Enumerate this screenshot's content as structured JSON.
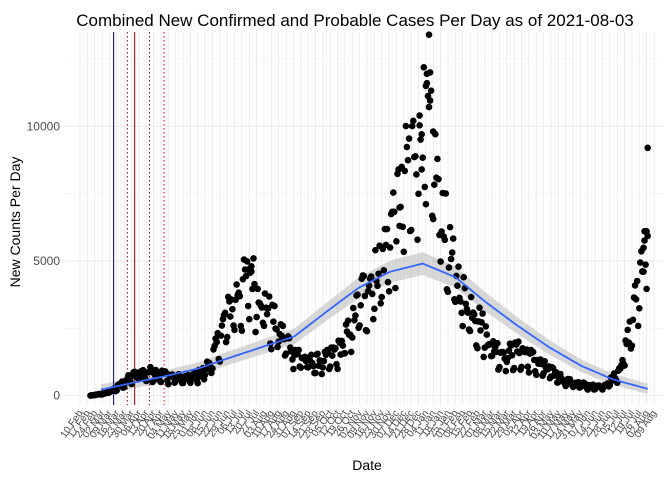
{
  "chart_data": {
    "type": "scatter",
    "title": "Combined New Confirmed and Probable Cases Per Day as of 2021-08-03",
    "xlabel": "Date",
    "ylabel": "New Counts Per Day",
    "x_start": "2020-02-10",
    "x_end": "2021-08-09",
    "ylim": [
      -350,
      13500
    ],
    "yticks": [
      0,
      5000,
      10000
    ],
    "ytick_labels": [
      "0",
      "5000",
      "10000"
    ],
    "xtick_labels": [
      "10 Feb",
      "17 Feb",
      "24 Feb",
      "02 Mar",
      "09 Mar",
      "16 Mar",
      "23 Mar",
      "30 Mar",
      "06 Apr",
      "13 Apr",
      "20 Apr",
      "27 Apr",
      "04 May",
      "11 May",
      "18 May",
      "25 May",
      "01 Jun",
      "08 Jun",
      "15 Jun",
      "22 Jun",
      "29 Jun",
      "06 Jul",
      "13 Jul",
      "20 Jul",
      "27 Jul",
      "03 Aug",
      "10 Aug",
      "17 Aug",
      "24 Aug",
      "31 Aug",
      "07 Sep",
      "14 Sep",
      "21 Sep",
      "28 Sep",
      "05 Oct",
      "12 Oct",
      "19 Oct",
      "26 Oct",
      "02 Nov",
      "09 Nov",
      "16 Nov",
      "23 Nov",
      "30 Nov",
      "07 Dec",
      "14 Dec",
      "21 Dec",
      "28 Dec",
      "04 Jan",
      "11 Jan",
      "18 Jan",
      "25 Jan",
      "01 Feb",
      "08 Feb",
      "15 Feb",
      "22 Feb",
      "01 Mar",
      "08 Mar",
      "15 Mar",
      "22 Mar",
      "29 Mar",
      "05 Apr",
      "12 Apr",
      "19 Apr",
      "26 Apr",
      "03 May",
      "10 May",
      "17 May",
      "24 May",
      "31 May",
      "07 Jun",
      "14 Jun",
      "21 Jun",
      "28 Jun",
      "05 Jul",
      "12 Jul",
      "19 Jul",
      "26 Jul",
      "02 Aug",
      "09 Aug"
    ],
    "grid": true,
    "point_color": "#000000",
    "smooth_color": "#3366ff",
    "ribbon_color": "#bebebe",
    "vlines": [
      {
        "date": "2020-03-13",
        "color": "#00008b",
        "style": "solid"
      },
      {
        "date": "2020-03-26",
        "color": "#8b0000",
        "style": "dotted"
      },
      {
        "date": "2020-04-02",
        "color": "#8b0000",
        "style": "solid"
      },
      {
        "date": "2020-04-16",
        "color": "#8b0000",
        "style": "dotted"
      },
      {
        "date": "2020-04-30",
        "color": "#ff0000",
        "style": "dotted"
      }
    ],
    "daily_series": {
      "anchors": [
        [
          "2020-02-20",
          0
        ],
        [
          "2020-03-05",
          80
        ],
        [
          "2020-03-15",
          250
        ],
        [
          "2020-03-25",
          550
        ],
        [
          "2020-04-05",
          800
        ],
        [
          "2020-04-20",
          850
        ],
        [
          "2020-05-05",
          700
        ],
        [
          "2020-05-20",
          600
        ],
        [
          "2020-06-05",
          800
        ],
        [
          "2020-06-15",
          1300
        ],
        [
          "2020-06-25",
          2500
        ],
        [
          "2020-07-05",
          3400
        ],
        [
          "2020-07-15",
          4000
        ],
        [
          "2020-07-22",
          4300
        ],
        [
          "2020-08-01",
          3500
        ],
        [
          "2020-08-10",
          2800
        ],
        [
          "2020-08-20",
          2200
        ],
        [
          "2020-09-01",
          1600
        ],
        [
          "2020-09-10",
          1300
        ],
        [
          "2020-09-20",
          1200
        ],
        [
          "2020-10-01",
          1300
        ],
        [
          "2020-10-15",
          1700
        ],
        [
          "2020-10-25",
          2500
        ],
        [
          "2020-11-05",
          3700
        ],
        [
          "2020-11-15",
          4200
        ],
        [
          "2020-11-25",
          5000
        ],
        [
          "2020-12-05",
          6500
        ],
        [
          "2020-12-15",
          7800
        ],
        [
          "2020-12-25",
          9000
        ],
        [
          "2021-01-03",
          9700
        ],
        [
          "2021-01-10",
          8800
        ],
        [
          "2021-01-18",
          7000
        ],
        [
          "2021-01-28",
          4800
        ],
        [
          "2021-02-10",
          3500
        ],
        [
          "2021-02-20",
          3000
        ],
        [
          "2021-03-01",
          2300
        ],
        [
          "2021-03-10",
          1700
        ],
        [
          "2021-03-20",
          1500
        ],
        [
          "2021-04-01",
          1600
        ],
        [
          "2021-04-10",
          1500
        ],
        [
          "2021-04-20",
          1200
        ],
        [
          "2021-05-01",
          900
        ],
        [
          "2021-05-10",
          700
        ],
        [
          "2021-05-20",
          500
        ],
        [
          "2021-06-01",
          400
        ],
        [
          "2021-06-15",
          300
        ],
        [
          "2021-06-25",
          400
        ],
        [
          "2021-07-05",
          800
        ],
        [
          "2021-07-12",
          1500
        ],
        [
          "2021-07-20",
          2800
        ],
        [
          "2021-07-26",
          4300
        ],
        [
          "2021-08-01",
          6000
        ],
        [
          "2021-08-03",
          6200
        ]
      ],
      "highlight_points": [
        [
          "2021-01-07",
          13400
        ],
        [
          "2021-01-08",
          12000
        ],
        [
          "2021-01-05",
          11600
        ],
        [
          "2021-01-04",
          11500
        ],
        [
          "2020-12-29",
          10400
        ],
        [
          "2021-01-11",
          9800
        ],
        [
          "2021-08-03",
          9200
        ],
        [
          "2020-12-31",
          9700
        ],
        [
          "2021-07-31",
          6100
        ],
        [
          "2021-08-02",
          6100
        ],
        [
          "2021-07-29",
          4600
        ],
        [
          "2021-07-30",
          4600
        ],
        [
          "2020-12-10",
          6300
        ],
        [
          "2020-07-22",
          4800
        ],
        [
          "2020-07-20",
          4700
        ]
      ]
    },
    "smooth_anchors": [
      [
        "2020-03-01",
        220
      ],
      [
        "2020-04-01",
        480
      ],
      [
        "2020-05-01",
        720
      ],
      [
        "2020-06-01",
        1000
      ],
      [
        "2020-07-01",
        1400
      ],
      [
        "2020-08-01",
        1800
      ],
      [
        "2020-09-01",
        2200
      ],
      [
        "2020-10-01",
        3100
      ],
      [
        "2020-11-01",
        4000
      ],
      [
        "2020-12-01",
        4600
      ],
      [
        "2021-01-01",
        4900
      ],
      [
        "2021-02-01",
        4400
      ],
      [
        "2021-03-01",
        3500
      ],
      [
        "2021-04-01",
        2600
      ],
      [
        "2021-05-01",
        1800
      ],
      [
        "2021-06-01",
        1100
      ],
      [
        "2021-07-01",
        600
      ],
      [
        "2021-08-03",
        250
      ]
    ]
  }
}
